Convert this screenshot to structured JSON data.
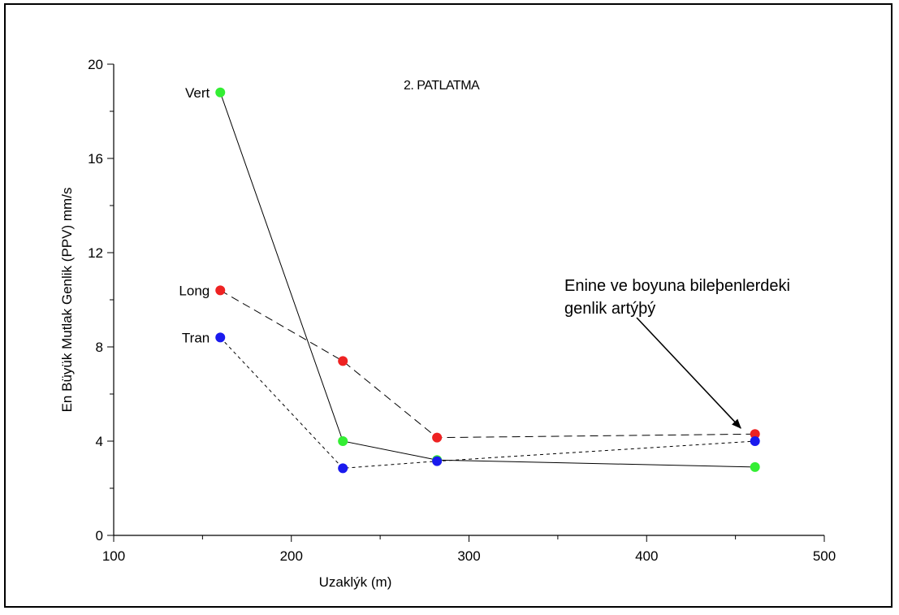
{
  "chart_data": {
    "type": "line",
    "title": "2. PATLATMA",
    "xlabel": "Uzaklýk (m)",
    "ylabel": "En Büyük Mutlak Genlik (PPV) mm/s",
    "xlim": [
      100,
      500
    ],
    "ylim": [
      0,
      20
    ],
    "x_ticks": [
      "100",
      "200",
      "300",
      "400",
      "500"
    ],
    "y_ticks": [
      "0",
      "4",
      "8",
      "12",
      "16",
      "20"
    ],
    "grid": false,
    "series": [
      {
        "name": "Vert",
        "color": "#33ee33",
        "line_style": "solid",
        "x": [
          160,
          229,
          282,
          461
        ],
        "y": [
          18.8,
          4.0,
          3.2,
          2.9
        ]
      },
      {
        "name": "Long",
        "color": "#ee2222",
        "line_style": "long-dash",
        "x": [
          160,
          229,
          282,
          461
        ],
        "y": [
          10.4,
          7.4,
          4.15,
          4.3
        ]
      },
      {
        "name": "Tran",
        "color": "#1a1aee",
        "line_style": "short-dash",
        "x": [
          160,
          229,
          282,
          461
        ],
        "y": [
          8.4,
          2.85,
          3.15,
          4.0
        ]
      }
    ],
    "annotation": {
      "lines": [
        "Enine ve boyuna bileþenlerdeki",
        "genlik artýþý"
      ],
      "arrow_to": [
        453,
        4.55
      ]
    }
  }
}
